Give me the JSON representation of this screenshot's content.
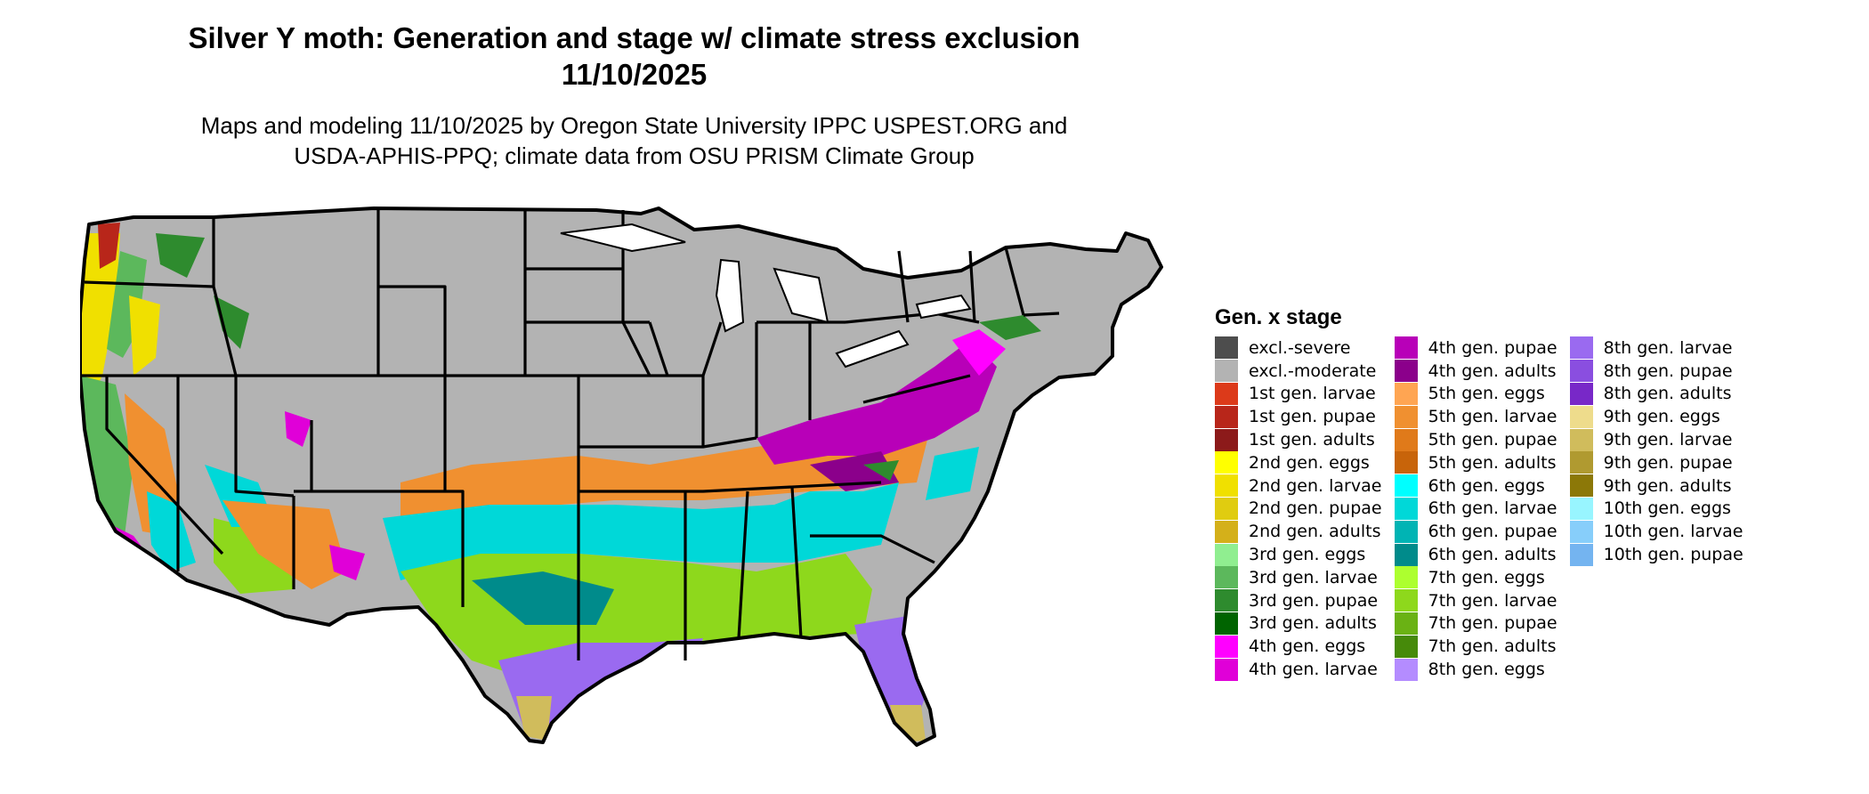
{
  "title_line1": "Silver Y moth: Generation and stage w/ climate stress exclusion",
  "title_line2": "11/10/2025",
  "subtitle_line1": "Maps and modeling 11/10/2025 by Oregon State University IPPC USPEST.ORG and",
  "subtitle_line2": "USDA-APHIS-PPQ; climate data from OSU PRISM Climate Group",
  "legend": {
    "title": "Gen. x stage",
    "items": [
      {
        "label": "excl.-severe",
        "color": "#4d4d4d"
      },
      {
        "label": "excl.-moderate",
        "color": "#b3b3b3"
      },
      {
        "label": "1st gen. larvae",
        "color": "#dc3a1a"
      },
      {
        "label": "1st gen. pupae",
        "color": "#b8261a"
      },
      {
        "label": "1st gen. adults",
        "color": "#8c1a1a"
      },
      {
        "label": "2nd gen. eggs",
        "color": "#ffff00"
      },
      {
        "label": "2nd gen. larvae",
        "color": "#f0e000"
      },
      {
        "label": "2nd gen. pupae",
        "color": "#e0cc10"
      },
      {
        "label": "2nd gen. adults",
        "color": "#d4b01a"
      },
      {
        "label": "3rd gen. eggs",
        "color": "#90ee90"
      },
      {
        "label": "3rd gen. larvae",
        "color": "#5cb85c"
      },
      {
        "label": "3rd gen. pupae",
        "color": "#2e8b2e"
      },
      {
        "label": "3rd gen. adults",
        "color": "#006400"
      },
      {
        "label": "4th gen. eggs",
        "color": "#ff00ff"
      },
      {
        "label": "4th gen. larvae",
        "color": "#e000d8"
      },
      {
        "label": "4th gen. pupae",
        "color": "#b800b8"
      },
      {
        "label": "4th gen. adults",
        "color": "#8b008b"
      },
      {
        "label": "5th gen. eggs",
        "color": "#ffa552"
      },
      {
        "label": "5th gen. larvae",
        "color": "#f09030"
      },
      {
        "label": "5th gen. pupae",
        "color": "#e07a1a"
      },
      {
        "label": "5th gen. adults",
        "color": "#c8640a"
      },
      {
        "label": "6th gen. eggs",
        "color": "#00ffff"
      },
      {
        "label": "6th gen. larvae",
        "color": "#00d8d8"
      },
      {
        "label": "6th gen. pupae",
        "color": "#00b4b4"
      },
      {
        "label": "6th gen. adults",
        "color": "#008b8b"
      },
      {
        "label": "7th gen. eggs",
        "color": "#adff2f"
      },
      {
        "label": "7th gen. larvae",
        "color": "#8ed81c"
      },
      {
        "label": "7th gen. pupae",
        "color": "#6ab214"
      },
      {
        "label": "7th gen. adults",
        "color": "#468a0a"
      },
      {
        "label": "8th gen. eggs",
        "color": "#b48cff"
      },
      {
        "label": "8th gen. larvae",
        "color": "#9a6af0"
      },
      {
        "label": "8th gen. pupae",
        "color": "#8a4ee0"
      },
      {
        "label": "8th gen. adults",
        "color": "#7828c8"
      },
      {
        "label": "9th gen. eggs",
        "color": "#eedc8c"
      },
      {
        "label": "9th gen. larvae",
        "color": "#d0bc5c"
      },
      {
        "label": "9th gen. pupae",
        "color": "#b09a30"
      },
      {
        "label": "9th gen. adults",
        "color": "#8c7808"
      },
      {
        "label": "10th gen. eggs",
        "color": "#98f5ff"
      },
      {
        "label": "10th gen. larvae",
        "color": "#87cefa"
      },
      {
        "label": "10th gen. pupae",
        "color": "#74b4f0"
      }
    ]
  }
}
